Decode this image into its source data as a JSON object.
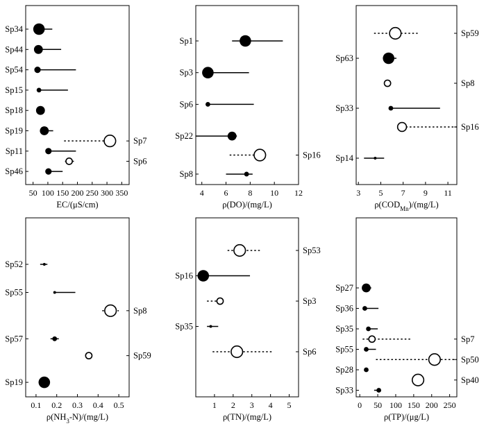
{
  "chart_data": [
    {
      "type": "scatter",
      "id": "ec",
      "xlabel_main": "EC/(μS/cm)",
      "xticks": [
        50,
        100,
        150,
        200,
        250,
        300,
        350
      ],
      "xlim": [
        25,
        375
      ],
      "rows": 8,
      "points": [
        {
          "label": "Sp34",
          "side": "left",
          "row": 0,
          "x": 70,
          "lo": 70,
          "hi": 115,
          "marker": "filled",
          "size": "large",
          "line": "solid"
        },
        {
          "label": "Sp44",
          "side": "left",
          "row": 1,
          "x": 68,
          "lo": 68,
          "hi": 145,
          "marker": "filled",
          "size": "medium",
          "line": "solid"
        },
        {
          "label": "Sp54",
          "side": "left",
          "row": 2,
          "x": 65,
          "lo": 65,
          "hi": 195,
          "marker": "filled",
          "size": "small",
          "line": "solid"
        },
        {
          "label": "Sp15",
          "side": "left",
          "row": 3,
          "x": 70,
          "lo": 70,
          "hi": 168,
          "marker": "filled",
          "size": "tiny",
          "line": "solid"
        },
        {
          "label": "Sp18",
          "side": "left",
          "row": 4,
          "x": 75,
          "lo": 75,
          "hi": 78,
          "marker": "filled",
          "size": "medium",
          "line": "solid"
        },
        {
          "label": "Sp19",
          "side": "left",
          "row": 5,
          "x": 88,
          "lo": 88,
          "hi": 118,
          "marker": "filled",
          "size": "medium",
          "line": "solid"
        },
        {
          "label": "Sp7",
          "side": "right",
          "row": 5.5,
          "x": 310,
          "lo": 155,
          "hi": 310,
          "marker": "open",
          "size": "large",
          "line": "dotted"
        },
        {
          "label": "Sp11",
          "side": "left",
          "row": 6,
          "x": 102,
          "lo": 102,
          "hi": 195,
          "marker": "filled",
          "size": "small",
          "line": "solid"
        },
        {
          "label": "Sp6",
          "side": "right",
          "row": 6.5,
          "x": 172,
          "lo": 158,
          "hi": 188,
          "marker": "open",
          "size": "small",
          "line": "dotted"
        },
        {
          "label": "Sp46",
          "side": "left",
          "row": 7,
          "x": 102,
          "lo": 102,
          "hi": 150,
          "marker": "filled",
          "size": "small",
          "line": "solid"
        }
      ]
    },
    {
      "type": "scatter",
      "id": "do",
      "xlabel_main": "ρ(DO)/(mg/L)",
      "xticks": [
        4,
        6,
        8,
        10,
        12
      ],
      "xlim": [
        3.5,
        12
      ],
      "rows": 5,
      "points": [
        {
          "label": "Sp1",
          "side": "left",
          "row": 0,
          "x": 7.6,
          "lo": 6.5,
          "hi": 10.7,
          "marker": "filled",
          "size": "large",
          "line": "solid"
        },
        {
          "label": "Sp3",
          "side": "left",
          "row": 1,
          "x": 4.5,
          "lo": 4.5,
          "hi": 7.9,
          "marker": "filled",
          "size": "large",
          "line": "solid"
        },
        {
          "label": "Sp6",
          "side": "left",
          "row": 2,
          "x": 4.5,
          "lo": 4.5,
          "hi": 8.3,
          "marker": "filled",
          "size": "tiny",
          "line": "solid"
        },
        {
          "label": "Sp22",
          "side": "left",
          "row": 3,
          "x": 6.5,
          "lo": 3.5,
          "hi": 6.9,
          "marker": "filled",
          "size": "medium",
          "line": "solid"
        },
        {
          "label": "Sp16",
          "side": "right",
          "row": 3.6,
          "x": 8.8,
          "lo": 6.3,
          "hi": 8.8,
          "marker": "open",
          "size": "large",
          "line": "dotted"
        },
        {
          "label": "Sp8",
          "side": "left",
          "row": 4.2,
          "x": 7.7,
          "lo": 6.0,
          "hi": 8.2,
          "marker": "filled",
          "size": "tiny",
          "line": "solid"
        }
      ]
    },
    {
      "type": "scatter",
      "id": "cod",
      "xlabel_main": "ρ(COD",
      "xlabel_sub": "Mn",
      "xlabel_tail": ")/(mg/L)",
      "xticks": [
        3,
        5,
        7,
        9,
        11
      ],
      "xlim": [
        2.8,
        11.8
      ],
      "rows": 5,
      "points": [
        {
          "label": "Sp59",
          "side": "right",
          "row": 0,
          "x": 6.3,
          "lo": 4.4,
          "hi": 8.3,
          "marker": "open",
          "size": "large",
          "line": "dotted"
        },
        {
          "label": "Sp63",
          "side": "left",
          "row": 1,
          "x": 5.7,
          "lo": 5.7,
          "hi": 6.4,
          "marker": "filled",
          "size": "large",
          "line": "solid"
        },
        {
          "label": "Sp8",
          "side": "right",
          "row": 2,
          "x": 5.6,
          "lo": 5.6,
          "hi": 5.6,
          "marker": "open",
          "size": "small",
          "line": "solid"
        },
        {
          "label": "Sp33",
          "side": "left",
          "row": 3,
          "x": 5.9,
          "lo": 5.9,
          "hi": 10.3,
          "marker": "filled",
          "size": "tiny",
          "line": "solid"
        },
        {
          "label": "Sp16",
          "side": "right",
          "row": 3.75,
          "x": 6.9,
          "lo": 6.9,
          "hi": 11.8,
          "marker": "open",
          "size": "medium",
          "line": "dotted"
        },
        {
          "label": "Sp14",
          "side": "left",
          "row": 5,
          "x": 4.5,
          "lo": 3.5,
          "hi": 5.3,
          "marker": "filled",
          "size": "micro",
          "line": "solid"
        }
      ]
    },
    {
      "type": "scatter",
      "id": "nh3",
      "xlabel_main": "ρ(NH",
      "xlabel_sub": "3",
      "xlabel_tail": "-N)/(mg/L)",
      "xticks": [
        0.1,
        0.2,
        0.3,
        0.4,
        0.5
      ],
      "xtick_labels": [
        "0.1",
        "0.2",
        "0.3",
        "0.4",
        "0.5"
      ],
      "xlim": [
        0.05,
        0.55
      ],
      "rows": 5,
      "points": [
        {
          "label": "Sp52",
          "side": "left",
          "row": 0,
          "x": 0.14,
          "lo": 0.12,
          "hi": 0.155,
          "marker": "filled",
          "size": "micro",
          "line": "solid"
        },
        {
          "label": "Sp55",
          "side": "left",
          "row": 1,
          "x": 0.19,
          "lo": 0.19,
          "hi": 0.29,
          "marker": "filled",
          "size": "micro",
          "line": "solid"
        },
        {
          "label": "Sp8",
          "side": "right",
          "row": 1.65,
          "x": 0.46,
          "lo": 0.42,
          "hi": 0.5,
          "marker": "open",
          "size": "large",
          "line": "dotted"
        },
        {
          "label": "Sp57",
          "side": "left",
          "row": 2.65,
          "x": 0.19,
          "lo": 0.17,
          "hi": 0.21,
          "marker": "filled",
          "size": "tiny",
          "line": "solid"
        },
        {
          "label": "Sp59",
          "side": "right",
          "row": 3.25,
          "x": 0.355,
          "lo": 0.34,
          "hi": 0.375,
          "marker": "open",
          "size": "small",
          "line": "dotted"
        },
        {
          "label": "Sp19",
          "side": "left",
          "row": 4.2,
          "x": 0.14,
          "lo": 0.14,
          "hi": 0.14,
          "marker": "filled",
          "size": "large",
          "line": "solid"
        }
      ]
    },
    {
      "type": "scatter",
      "id": "tn",
      "xlabel_main": "ρ(TN)/(mg/L)",
      "xticks": [
        1,
        2,
        3,
        4,
        5
      ],
      "xlim": [
        0,
        5.5
      ],
      "rows": 5,
      "points": [
        {
          "label": "Sp53",
          "side": "right",
          "row": 0,
          "x": 2.35,
          "lo": 1.7,
          "hi": 3.5,
          "marker": "open",
          "size": "large",
          "line": "dotted"
        },
        {
          "label": "Sp16",
          "side": "left",
          "row": 1,
          "x": 0.4,
          "lo": 0.4,
          "hi": 2.9,
          "marker": "filled",
          "size": "large",
          "line": "solid"
        },
        {
          "label": "Sp3",
          "side": "right",
          "row": 2,
          "x": 1.3,
          "lo": 0.6,
          "hi": 1.3,
          "marker": "open",
          "size": "small",
          "line": "dotted"
        },
        {
          "label": "Sp35",
          "side": "left",
          "row": 3,
          "x": 0.8,
          "lo": 0.6,
          "hi": 1.2,
          "marker": "filled",
          "size": "micro",
          "line": "solid"
        },
        {
          "label": "Sp6",
          "side": "right",
          "row": 4,
          "x": 2.2,
          "lo": 0.9,
          "hi": 4.1,
          "marker": "open",
          "size": "large",
          "line": "dotted"
        }
      ]
    },
    {
      "type": "scatter",
      "id": "tp",
      "xlabel_main": "ρ(TP)/(μg/L)",
      "xticks": [
        0,
        50,
        100,
        150,
        200,
        250
      ],
      "xlim": [
        -10,
        270
      ],
      "rows": 8,
      "points": [
        {
          "label": "Sp27",
          "side": "left",
          "row": 0,
          "x": 18,
          "lo": 18,
          "hi": 32,
          "marker": "filled",
          "size": "medium",
          "line": "solid"
        },
        {
          "label": "Sp36",
          "side": "left",
          "row": 1,
          "x": 14,
          "lo": 14,
          "hi": 52,
          "marker": "filled",
          "size": "tiny",
          "line": "solid"
        },
        {
          "label": "Sp35",
          "side": "left",
          "row": 2,
          "x": 24,
          "lo": 24,
          "hi": 50,
          "marker": "filled",
          "size": "tiny",
          "line": "solid"
        },
        {
          "label": "Sp7",
          "side": "right",
          "row": 2.5,
          "x": 34,
          "lo": 8,
          "hi": 145,
          "marker": "open",
          "size": "small",
          "line": "dotted"
        },
        {
          "label": "Sp55",
          "side": "left",
          "row": 3,
          "x": 18,
          "lo": 18,
          "hi": 45,
          "marker": "filled",
          "size": "tiny",
          "line": "solid"
        },
        {
          "label": "Sp50",
          "side": "right",
          "row": 3.5,
          "x": 208,
          "lo": 45,
          "hi": 270,
          "marker": "open",
          "size": "large",
          "line": "dotted"
        },
        {
          "label": "Sp28",
          "side": "left",
          "row": 4,
          "x": 18,
          "lo": 18,
          "hi": 18,
          "marker": "filled",
          "size": "tiny",
          "line": "solid"
        },
        {
          "label": "Sp40",
          "side": "right",
          "row": 4.5,
          "x": 162,
          "lo": 162,
          "hi": 178,
          "marker": "open",
          "size": "large",
          "line": "dotted"
        },
        {
          "label": "Sp33",
          "side": "left",
          "row": 5,
          "x": 53,
          "lo": 40,
          "hi": 58,
          "marker": "filled",
          "size": "tiny",
          "line": "solid"
        }
      ]
    }
  ]
}
